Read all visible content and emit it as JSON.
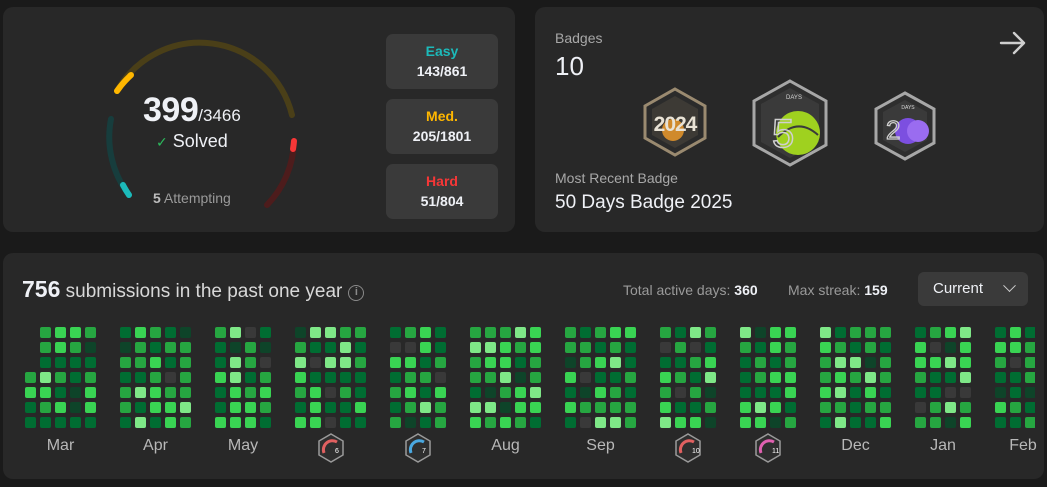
{
  "progress": {
    "solved": "399",
    "total": "/3466",
    "solved_label": "Solved",
    "attempting_count": "5",
    "attempting_label": "Attempting",
    "colors": {
      "easy": "#1cbaba",
      "medium": "#ffb700",
      "hard": "#f63737"
    }
  },
  "difficulty": [
    {
      "name": "Easy",
      "value": "143/861"
    },
    {
      "name": "Med.",
      "value": "205/1801"
    },
    {
      "name": "Hard",
      "value": "51/804"
    }
  ],
  "badges": {
    "label": "Badges",
    "count": "10",
    "items": [
      {
        "icon": "badge-2024-icon",
        "text": "2024"
      },
      {
        "icon": "badge-50-days-icon",
        "text": "DAYS"
      },
      {
        "icon": "badge-100-days-icon",
        "text": "DAYS"
      }
    ],
    "recent_label": "Most Recent Badge",
    "recent_name": "50 Days Badge 2025"
  },
  "calendar": {
    "count": "756",
    "title_suffix": "submissions in the past one year",
    "active_days_label": "Total active days:",
    "active_days": "360",
    "max_streak_label": "Max streak:",
    "max_streak": "159",
    "dropdown_value": "Current",
    "months": [
      "Mar",
      "Apr",
      "May",
      "",
      "",
      "Aug",
      "Sep",
      "",
      "",
      "Dec",
      "Jan",
      "Feb"
    ],
    "month_badges": [
      {
        "index": 3,
        "icon": "monthly-badge-jun-icon",
        "text": "6"
      },
      {
        "index": 4,
        "icon": "monthly-badge-jul-icon",
        "text": "7"
      },
      {
        "index": 7,
        "icon": "monthly-badge-oct-icon",
        "text": "10"
      },
      {
        "index": 8,
        "icon": "monthly-badge-nov-icon",
        "text": "11"
      }
    ],
    "level_colors": [
      "#393939",
      "#0e4429",
      "#006d32",
      "#26a641",
      "#39d353",
      "#7ee787"
    ]
  }
}
